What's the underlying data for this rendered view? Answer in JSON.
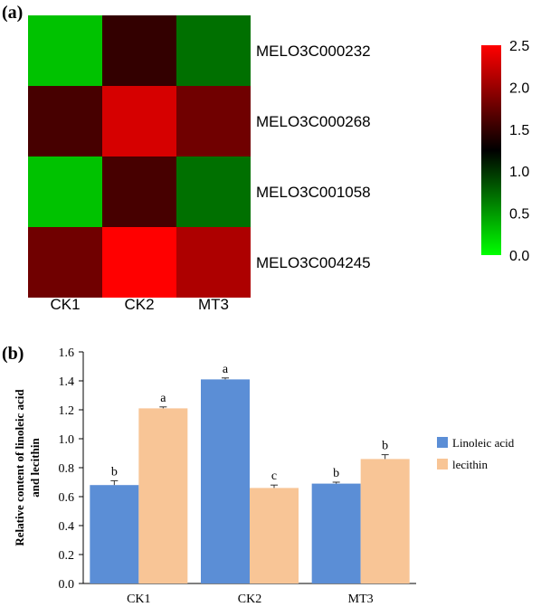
{
  "chart_data": [
    {
      "panel_label": "(a)",
      "type": "heatmap",
      "columns": [
        "CK1",
        "CK2",
        "MT3"
      ],
      "rows": [
        "MELO3C000232",
        "MELO3C000268",
        "MELO3C001058",
        "MELO3C004245"
      ],
      "values": [
        [
          0.3,
          1.5,
          0.7
        ],
        [
          1.6,
          2.3,
          1.8
        ],
        [
          0.3,
          1.6,
          0.7
        ],
        [
          1.8,
          2.5,
          2.1
        ]
      ],
      "colorbar": {
        "range": [
          0,
          2.5
        ],
        "ticks": [
          "2.5",
          "2.0",
          "1.5",
          "1.0",
          "0.5",
          "0.0"
        ],
        "low_color": "#00ff00",
        "mid_color": "#000000",
        "high_color": "#ff0000",
        "mid_value": 1.25
      }
    },
    {
      "panel_label": "(b)",
      "type": "bar",
      "categories": [
        "CK1",
        "CK2",
        "MT3"
      ],
      "ylabel": "Relative content of linoleic acid and lecithin",
      "ylim": [
        0,
        1.6
      ],
      "yticks": [
        "0.0",
        "0.2",
        "0.4",
        "0.6",
        "0.8",
        "1.0",
        "1.2",
        "1.4",
        "1.6"
      ],
      "legend_position": "right",
      "series": [
        {
          "name": "Linoleic acid",
          "color": "#5b8ed6",
          "values": [
            0.68,
            1.41,
            0.69
          ],
          "errors": [
            0.03,
            0.01,
            0.01
          ],
          "letters": [
            "b",
            "a",
            "b"
          ]
        },
        {
          "name": "lecithin",
          "color": "#f8c596",
          "values": [
            1.21,
            0.66,
            0.86
          ],
          "errors": [
            0.01,
            0.02,
            0.03
          ],
          "letters": [
            "a",
            "c",
            "b"
          ]
        }
      ]
    }
  ]
}
